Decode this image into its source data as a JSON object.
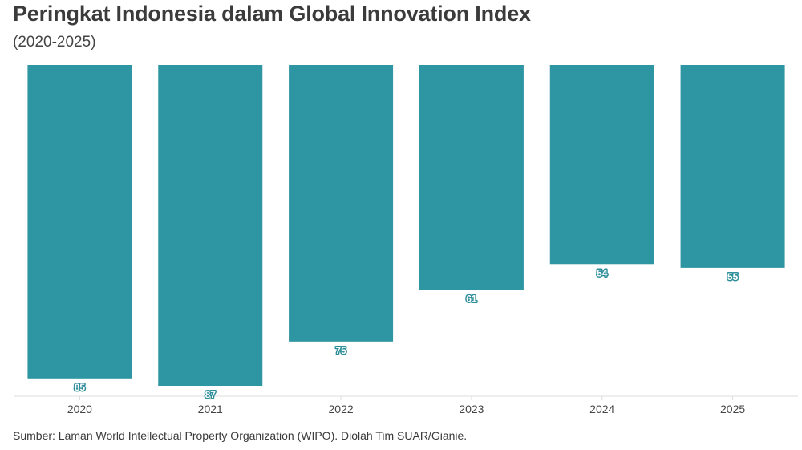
{
  "header": {
    "title": "Peringkat Indonesia dalam Global Innovation Index",
    "subtitle": "(2020-2025)"
  },
  "footer": {
    "source": "Sumber: Laman World Intellectual Property Organization (WIPO). Diolah Tim SUAR/Gianie."
  },
  "colors": {
    "bar": "#2e95a2",
    "label_stroke": "#2e8f9a",
    "axis": "#dddddd"
  },
  "chart_data": {
    "type": "bar",
    "title": "Peringkat Indonesia dalam Global Innovation Index",
    "subtitle": "(2020-2025)",
    "categories": [
      "2020",
      "2021",
      "2022",
      "2023",
      "2024",
      "2025"
    ],
    "values": [
      85,
      87,
      75,
      61,
      54,
      55
    ],
    "y_scale": "bars hang from top; bar length proportional to rank value",
    "ylim": [
      0,
      87
    ],
    "grid": false,
    "legend": "none",
    "xlabel": "",
    "ylabel": ""
  }
}
